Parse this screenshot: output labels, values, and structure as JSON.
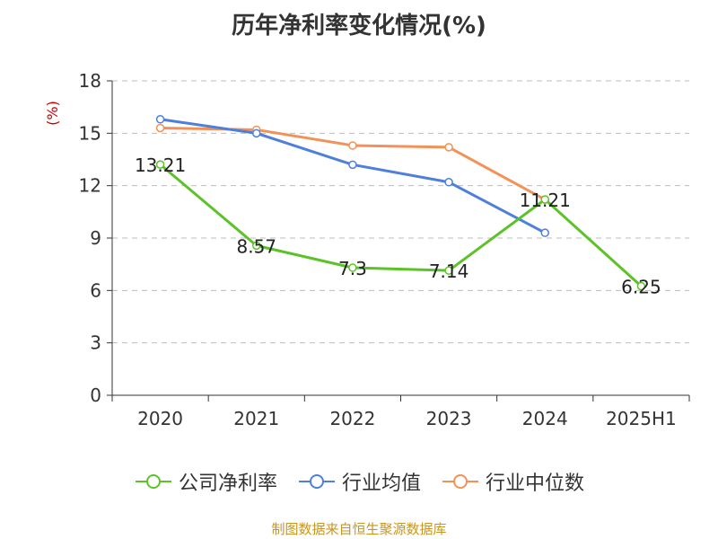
{
  "chart_data": {
    "type": "line",
    "title": "历年净利率变化情况(%)",
    "ylabel": "(%)",
    "categories": [
      "2020",
      "2021",
      "2022",
      "2023",
      "2024",
      "2025H1"
    ],
    "ylim": [
      0,
      18
    ],
    "yticks": [
      0,
      3,
      6,
      9,
      12,
      15,
      18
    ],
    "grid": true,
    "legend_position": "bottom",
    "series": [
      {
        "name": "公司净利率",
        "color": "#5bc228",
        "values": [
          13.21,
          8.57,
          7.3,
          7.14,
          11.21,
          6.25
        ],
        "labels": [
          "13.21",
          "8.57",
          "7.3",
          "7.14",
          "11.21",
          "6.25"
        ]
      },
      {
        "name": "行业均值",
        "color": "#4f7fdc",
        "values": [
          15.8,
          15.0,
          13.2,
          12.2,
          9.3,
          null
        ]
      },
      {
        "name": "行业中位数",
        "color": "#f39157",
        "values": [
          15.3,
          15.2,
          14.3,
          14.2,
          11.2,
          null
        ]
      }
    ]
  },
  "source": "制图数据来自恒生聚源数据库"
}
